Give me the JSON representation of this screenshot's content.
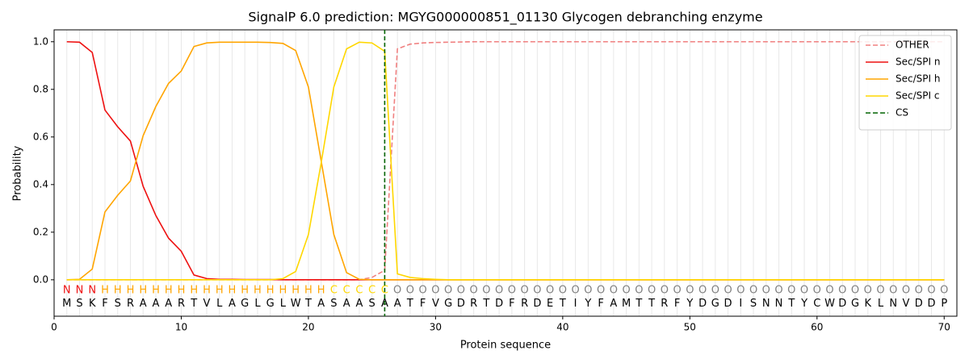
{
  "chart_data": {
    "type": "line",
    "title": "SignalP 6.0 prediction: MGYG000000851_01130 Glycogen debranching enzyme",
    "x_label": "Protein sequence",
    "y_label": "Probability",
    "x": [
      1,
      2,
      3,
      4,
      5,
      6,
      7,
      8,
      9,
      10,
      11,
      12,
      13,
      14,
      15,
      16,
      17,
      18,
      19,
      20,
      21,
      22,
      23,
      24,
      25,
      26,
      27,
      28,
      29,
      30,
      31,
      32,
      33,
      34,
      35,
      36,
      37,
      38,
      39,
      40,
      41,
      42,
      43,
      44,
      45,
      46,
      47,
      48,
      49,
      50,
      51,
      52,
      53,
      54,
      55,
      56,
      57,
      58,
      59,
      60,
      61,
      62,
      63,
      64,
      65,
      66,
      67,
      68,
      69,
      70
    ],
    "series": [
      {
        "name": "OTHER",
        "color": "#f08080",
        "dashed": true,
        "values": [
          0,
          0,
          0,
          0,
          0,
          0,
          0,
          0,
          0,
          0,
          0,
          0,
          0,
          0,
          0,
          0,
          0,
          0,
          0,
          0,
          0,
          0,
          0,
          0,
          0.01,
          0.04,
          0.97,
          0.99,
          0.995,
          0.997,
          0.998,
          0.999,
          1,
          1,
          1,
          1,
          1,
          1,
          1,
          1,
          1,
          1,
          1,
          1,
          1,
          1,
          1,
          1,
          1,
          1,
          1,
          1,
          1,
          1,
          1,
          1,
          1,
          1,
          1,
          1,
          1,
          1,
          1,
          1,
          1,
          1,
          1,
          1,
          1,
          1
        ]
      },
      {
        "name": "Sec/SPI n",
        "color": "#ee1111",
        "dashed": false,
        "values": [
          1.0,
          0.998,
          0.955,
          0.713,
          0.643,
          0.583,
          0.393,
          0.27,
          0.175,
          0.12,
          0.02,
          0.005,
          0.002,
          0.002,
          0.001,
          0.001,
          0.001,
          0,
          0,
          0,
          0,
          0,
          0,
          0,
          0,
          0,
          0,
          0,
          0,
          0,
          0,
          0,
          0,
          0,
          0,
          0,
          0,
          0,
          0,
          0,
          0,
          0,
          0,
          0,
          0,
          0,
          0,
          0,
          0,
          0,
          0,
          0,
          0,
          0,
          0,
          0,
          0,
          0,
          0,
          0,
          0,
          0,
          0,
          0,
          0,
          0,
          0,
          0,
          0,
          0
        ]
      },
      {
        "name": "Sec/SPI h",
        "color": "#ffa500",
        "dashed": false,
        "values": [
          0,
          0.002,
          0.045,
          0.285,
          0.355,
          0.415,
          0.605,
          0.728,
          0.825,
          0.877,
          0.98,
          0.995,
          0.998,
          0.998,
          0.998,
          0.998,
          0.997,
          0.993,
          0.963,
          0.81,
          0.5,
          0.19,
          0.03,
          0.002,
          0,
          0,
          0,
          0,
          0,
          0,
          0,
          0,
          0,
          0,
          0,
          0,
          0,
          0,
          0,
          0,
          0,
          0,
          0,
          0,
          0,
          0,
          0,
          0,
          0,
          0,
          0,
          0,
          0,
          0,
          0,
          0,
          0,
          0,
          0,
          0,
          0,
          0,
          0,
          0,
          0,
          0,
          0,
          0,
          0,
          0
        ]
      },
      {
        "name": "Sec/SPI c",
        "color": "#ffd700",
        "dashed": false,
        "values": [
          0,
          0,
          0,
          0,
          0,
          0,
          0,
          0,
          0,
          0,
          0,
          0,
          0,
          0,
          0,
          0,
          0,
          0.005,
          0.035,
          0.19,
          0.49,
          0.81,
          0.97,
          0.998,
          0.995,
          0.96,
          0.025,
          0.01,
          0.005,
          0.002,
          0,
          0,
          0,
          0,
          0,
          0,
          0,
          0,
          0,
          0,
          0,
          0,
          0,
          0,
          0,
          0,
          0,
          0,
          0,
          0,
          0,
          0,
          0,
          0,
          0,
          0,
          0,
          0,
          0,
          0,
          0,
          0,
          0,
          0,
          0,
          0,
          0,
          0,
          0,
          0
        ]
      }
    ],
    "vlines": [
      {
        "name": "CS",
        "x": 26,
        "color": "#006400",
        "dashed": true
      }
    ],
    "sequence": [
      "M",
      "S",
      "K",
      "F",
      "S",
      "R",
      "A",
      "A",
      "A",
      "R",
      "T",
      "V",
      "L",
      "A",
      "G",
      "L",
      "G",
      "L",
      "W",
      "T",
      "A",
      "S",
      "A",
      "A",
      "S",
      "A",
      "A",
      "T",
      "F",
      "V",
      "G",
      "D",
      "R",
      "T",
      "D",
      "F",
      "R",
      "D",
      "E",
      "T",
      "I",
      "Y",
      "F",
      "A",
      "M",
      "T",
      "T",
      "R",
      "F",
      "Y",
      "D",
      "G",
      "D",
      "I",
      "S",
      "N",
      "N",
      "T",
      "Y",
      "C",
      "W",
      "D",
      "G",
      "K",
      "L",
      "N",
      "V",
      "D",
      "D",
      "P"
    ],
    "labels": [
      "N",
      "N",
      "N",
      "H",
      "H",
      "H",
      "H",
      "H",
      "H",
      "H",
      "H",
      "H",
      "H",
      "H",
      "H",
      "H",
      "H",
      "H",
      "H",
      "H",
      "H",
      "C",
      "C",
      "C",
      "C",
      "C",
      "O",
      "O",
      "O",
      "O",
      "O",
      "O",
      "O",
      "O",
      "O",
      "O",
      "O",
      "O",
      "O",
      "O",
      "O",
      "O",
      "O",
      "O",
      "O",
      "O",
      "O",
      "O",
      "O",
      "O",
      "O",
      "O",
      "O",
      "O",
      "O",
      "O",
      "O",
      "O",
      "O",
      "O",
      "O",
      "O",
      "O",
      "O",
      "O",
      "O",
      "O",
      "O",
      "O",
      "O"
    ],
    "label_colors": {
      "N": "#ee1111",
      "H": "#ffa500",
      "C": "#ffd700",
      "O": "#808080"
    },
    "xlim": [
      0,
      71
    ],
    "ylim": [
      -0.153,
      1.05
    ],
    "xticks": [
      0,
      10,
      20,
      30,
      40,
      50,
      60,
      70
    ],
    "yticks": [
      {
        "value": 0,
        "label": "0.0"
      },
      {
        "value": 0.2,
        "label": "0.2"
      },
      {
        "value": 0.4,
        "label": "0.4"
      },
      {
        "value": 0.6,
        "label": "0.6"
      },
      {
        "value": 0.8,
        "label": "0.8"
      },
      {
        "value": 1,
        "label": "1.0"
      }
    ],
    "legend": "upper right"
  }
}
